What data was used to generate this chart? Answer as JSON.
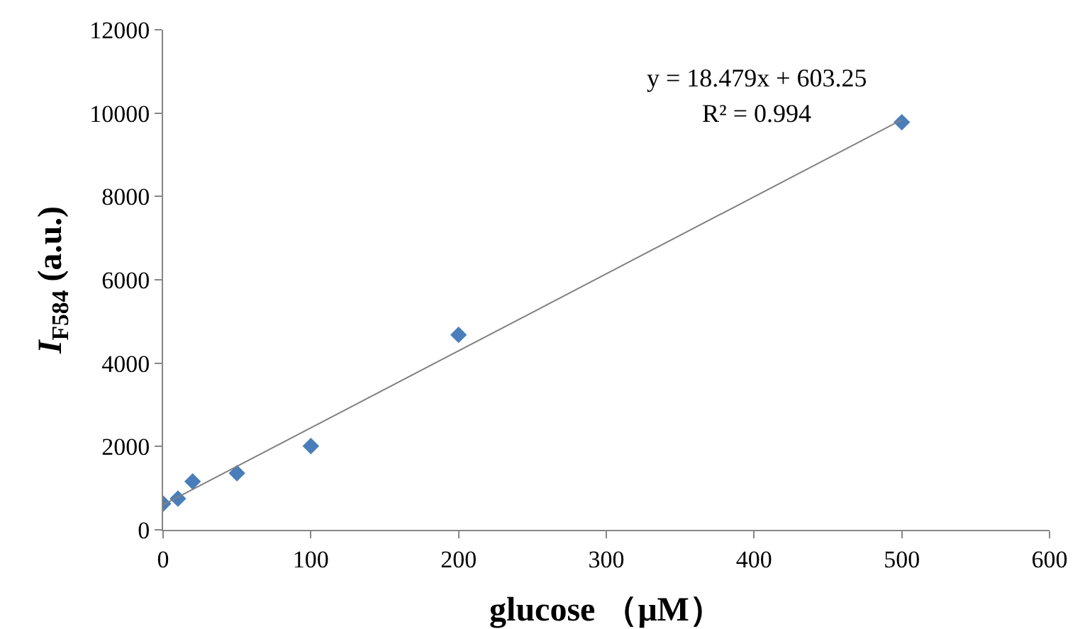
{
  "chart_data": {
    "type": "scatter",
    "xlabel": "glucose （μM）",
    "ylabel": "I$_{F584}$ (a.u.)",
    "xlim": [
      0,
      600
    ],
    "xticks": [
      0,
      100,
      200,
      300,
      400,
      500,
      600
    ],
    "ylim": [
      0,
      12000
    ],
    "yticks": [
      0,
      2000,
      4000,
      6000,
      8000,
      10000,
      12000
    ],
    "grid": false,
    "legend": false,
    "series": [
      {
        "marker": "diamond",
        "color": "#4a7ebb",
        "x": [
          0,
          10,
          20,
          50,
          100,
          200,
          500
        ],
        "values": [
          630,
          750,
          1160,
          1360,
          2010,
          4680,
          9780
        ]
      },
      {
        "type": "line",
        "marker": "none",
        "color": "#808080",
        "line_style": "solid",
        "x": [
          0,
          500
        ],
        "values": [
          600,
          9840
        ]
      }
    ],
    "annotations": [
      "y = 18.479x + 603.25",
      "R² = 0.994"
    ]
  }
}
